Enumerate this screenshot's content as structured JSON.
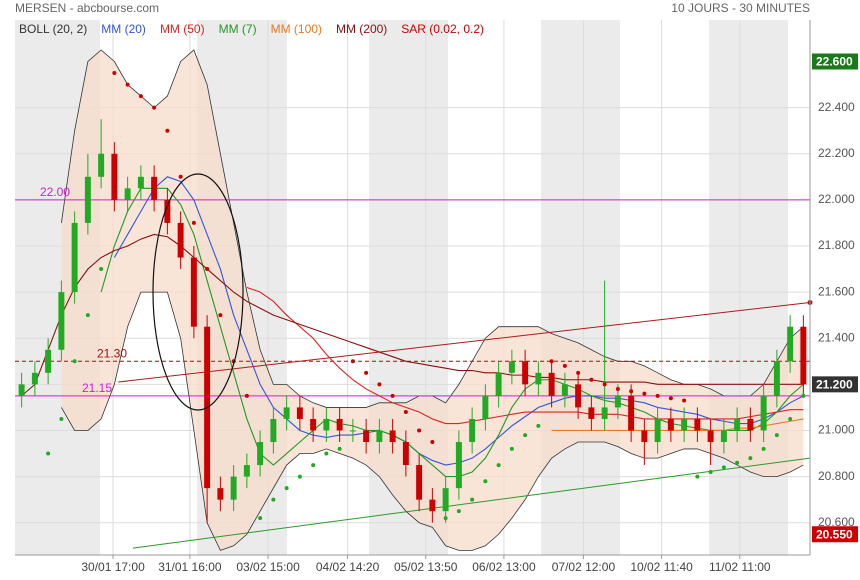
{
  "chart_data": {
    "type": "candlestick",
    "title": "MERSEN - abcbourse.com",
    "subtitle": "10 JOURS - 30 MINUTES",
    "up_color": "#22aa22",
    "down_color": "#cc0000",
    "xlim": [
      -0.5,
      59.5
    ],
    "xticks": [
      {
        "value": 6.9,
        "label": "30/01 17:00"
      },
      {
        "value": 12.7,
        "label": "31/01 16:00"
      },
      {
        "value": 18.6,
        "label": "03/02 15:00"
      },
      {
        "value": 24.6,
        "label": "04/02 14:20"
      },
      {
        "value": 30.5,
        "label": "05/02 13:50"
      },
      {
        "value": 36.4,
        "label": "06/02 13:00"
      },
      {
        "value": 42.4,
        "label": "07/02 12:00"
      },
      {
        "value": 48.3,
        "label": "10/02 11:40"
      },
      {
        "value": 54.2,
        "label": "11/02 11:00"
      }
    ],
    "ylim": [
      20.46,
      22.78
    ],
    "yticks": [
      {
        "value": 20.6,
        "label": "20.600"
      },
      {
        "value": 20.8,
        "label": "20.800"
      },
      {
        "value": 21.0,
        "label": "21.000"
      },
      {
        "value": 21.2,
        "label": "21.200"
      },
      {
        "value": 21.4,
        "label": "21.400"
      },
      {
        "value": 21.6,
        "label": "21.600"
      },
      {
        "value": 21.8,
        "label": "21.800"
      },
      {
        "value": 22.0,
        "label": "22.000"
      },
      {
        "value": 22.2,
        "label": "22.200"
      },
      {
        "value": 22.4,
        "label": "22.400"
      }
    ],
    "grid": true,
    "markers": [
      {
        "value": 22.6,
        "label": "22.600",
        "color": "#1a7a1a"
      },
      {
        "value": 21.2,
        "label": "21.200",
        "color": "#333333"
      },
      {
        "value": 20.55,
        "label": "20.550",
        "color": "#cc0000"
      }
    ],
    "open": [
      21.15,
      21.2,
      21.25,
      21.35,
      21.6,
      21.9,
      22.1,
      22.2,
      22.0,
      22.05,
      22.1,
      22.0,
      21.9,
      21.75,
      21.45,
      20.75,
      20.7,
      20.8,
      20.85,
      20.95,
      21.05,
      21.1,
      21.05,
      21.0,
      21.05,
      21.0,
      21.0,
      20.95,
      21.0,
      20.95,
      20.85,
      20.7,
      20.65,
      20.75,
      20.95,
      21.05,
      21.15,
      21.25,
      21.3,
      21.2,
      21.25,
      21.15,
      21.2,
      21.1,
      21.05,
      21.1,
      21.15,
      21.0,
      20.95,
      21.05,
      21.0,
      21.05,
      21.0,
      20.95,
      21.0,
      21.05,
      21.0,
      21.15,
      21.3,
      21.45
    ],
    "high": [
      21.25,
      21.3,
      21.4,
      21.65,
      21.95,
      22.2,
      22.35,
      22.25,
      22.1,
      22.15,
      22.15,
      22.05,
      21.95,
      21.8,
      21.5,
      20.8,
      20.85,
      20.9,
      21.0,
      21.1,
      21.15,
      21.15,
      21.1,
      21.1,
      21.1,
      21.05,
      21.05,
      21.05,
      21.05,
      21.0,
      20.9,
      20.75,
      20.8,
      21.0,
      21.1,
      21.2,
      21.3,
      21.35,
      21.35,
      21.3,
      21.3,
      21.25,
      21.25,
      21.15,
      21.65,
      21.2,
      21.2,
      21.05,
      21.1,
      21.1,
      21.1,
      21.1,
      21.05,
      21.05,
      21.1,
      21.1,
      21.2,
      21.35,
      21.5,
      21.5
    ],
    "low": [
      21.1,
      21.15,
      21.2,
      21.3,
      21.55,
      21.85,
      22.05,
      21.95,
      21.95,
      22.0,
      21.95,
      21.85,
      21.7,
      21.4,
      20.6,
      20.65,
      20.65,
      20.75,
      20.8,
      20.9,
      21.0,
      21.0,
      20.95,
      20.95,
      20.95,
      20.95,
      20.9,
      20.9,
      20.9,
      20.8,
      20.65,
      20.6,
      20.6,
      20.7,
      20.9,
      21.0,
      21.1,
      21.2,
      21.15,
      21.15,
      21.1,
      21.1,
      21.05,
      21.0,
      21.0,
      21.05,
      20.95,
      20.85,
      20.9,
      20.95,
      20.95,
      20.95,
      20.85,
      20.9,
      20.95,
      20.95,
      20.95,
      21.1,
      21.25,
      21.15
    ],
    "close": [
      21.2,
      21.25,
      21.35,
      21.6,
      21.9,
      22.1,
      22.2,
      22.0,
      22.05,
      22.1,
      22.0,
      21.9,
      21.75,
      21.45,
      20.75,
      20.7,
      20.8,
      20.85,
      20.95,
      21.05,
      21.1,
      21.05,
      21.0,
      21.05,
      21.0,
      21.0,
      20.95,
      21.0,
      20.95,
      20.85,
      20.7,
      20.65,
      20.75,
      20.95,
      21.05,
      21.15,
      21.25,
      21.3,
      21.2,
      21.25,
      21.15,
      21.2,
      21.1,
      21.05,
      21.1,
      21.15,
      21.0,
      20.95,
      21.05,
      21.0,
      21.05,
      21.0,
      20.95,
      21.0,
      21.05,
      21.0,
      21.15,
      21.3,
      21.45,
      21.2
    ],
    "bollinger": {
      "name": "BOLL (20, 2)",
      "color": "#333333",
      "fill": "#f6dccb",
      "upper": [
        null,
        null,
        null,
        21.9,
        22.3,
        22.6,
        22.65,
        22.6,
        22.5,
        22.45,
        22.4,
        22.45,
        22.6,
        22.65,
        22.5,
        22.2,
        21.9,
        21.6,
        21.35,
        21.2,
        21.2,
        21.15,
        21.12,
        21.1,
        21.1,
        21.1,
        21.1,
        21.12,
        21.12,
        21.12,
        21.15,
        21.15,
        21.12,
        21.2,
        21.3,
        21.4,
        21.45,
        21.45,
        21.45,
        21.45,
        21.42,
        21.4,
        21.38,
        21.35,
        21.32,
        21.3,
        21.3,
        21.28,
        21.25,
        21.22,
        21.2,
        21.2,
        21.18,
        21.15,
        21.15,
        21.15,
        21.2,
        21.3,
        21.4,
        21.45
      ],
      "lower": [
        null,
        null,
        null,
        21.1,
        21.0,
        21.0,
        21.05,
        21.2,
        21.45,
        21.6,
        21.6,
        21.6,
        21.4,
        21.0,
        20.6,
        20.48,
        20.5,
        20.55,
        20.65,
        20.75,
        20.85,
        20.9,
        20.9,
        20.92,
        20.9,
        20.88,
        20.85,
        20.8,
        20.72,
        20.65,
        20.6,
        20.58,
        20.5,
        20.48,
        20.48,
        20.5,
        20.55,
        20.62,
        20.7,
        20.8,
        20.88,
        20.92,
        20.95,
        20.95,
        20.95,
        20.93,
        20.9,
        20.88,
        20.88,
        20.9,
        20.92,
        20.92,
        20.9,
        20.88,
        20.85,
        20.82,
        20.8,
        20.8,
        20.82,
        20.85
      ]
    },
    "series": [
      {
        "name": "MM (20)",
        "color": "#3355dd",
        "values": [
          null,
          null,
          null,
          null,
          null,
          null,
          null,
          21.75,
          21.85,
          21.95,
          22.05,
          22.1,
          22.08,
          22.0,
          21.85,
          21.7,
          21.5,
          21.35,
          21.2,
          21.1,
          21.05,
          21.0,
          20.98,
          20.97,
          20.98,
          20.98,
          20.99,
          21.0,
          20.98,
          20.95,
          20.9,
          20.87,
          20.85,
          20.86,
          20.88,
          20.92,
          20.97,
          21.02,
          21.06,
          21.1,
          21.12,
          21.14,
          21.15,
          21.15,
          21.14,
          21.14,
          21.13,
          21.12,
          21.1,
          21.09,
          21.08,
          21.07,
          21.05,
          21.04,
          21.03,
          21.03,
          21.05,
          21.08,
          21.12,
          21.15
        ]
      },
      {
        "name": "MM (50)",
        "color": "#dd2222",
        "values": [
          null,
          null,
          null,
          null,
          null,
          null,
          null,
          null,
          null,
          null,
          null,
          null,
          null,
          null,
          null,
          null,
          null,
          21.62,
          21.6,
          21.56,
          21.5,
          21.45,
          21.4,
          21.33,
          21.27,
          21.22,
          21.18,
          21.15,
          21.12,
          21.1,
          21.08,
          21.05,
          21.03,
          21.03,
          21.04,
          21.05,
          21.06,
          21.07,
          21.08,
          21.08,
          21.08,
          21.08,
          21.08,
          21.07,
          21.07,
          21.07,
          21.06,
          21.05,
          21.05,
          21.05,
          21.05,
          21.05,
          21.05,
          21.05,
          21.05,
          21.06,
          21.07,
          21.08,
          21.09,
          21.09
        ]
      },
      {
        "name": "MM (7)",
        "color": "#229922",
        "values": [
          null,
          null,
          null,
          null,
          null,
          null,
          21.6,
          21.8,
          21.95,
          22.05,
          22.05,
          22.05,
          21.98,
          21.85,
          21.65,
          21.45,
          21.25,
          21.05,
          20.9,
          20.85,
          20.9,
          20.95,
          21.0,
          21.05,
          21.03,
          21.02,
          21.0,
          21.0,
          20.98,
          20.95,
          20.9,
          20.85,
          20.8,
          20.8,
          20.82,
          20.88,
          20.98,
          21.1,
          21.18,
          21.22,
          21.22,
          21.2,
          21.18,
          21.15,
          21.13,
          21.12,
          21.1,
          21.08,
          21.05,
          21.03,
          21.02,
          21.01,
          21.0,
          21.0,
          21.0,
          21.0,
          21.03,
          21.08,
          21.15,
          21.2
        ]
      },
      {
        "name": "MM (100)",
        "color": "#ee7722",
        "values": [
          null,
          null,
          null,
          null,
          null,
          null,
          null,
          null,
          null,
          null,
          null,
          null,
          null,
          null,
          null,
          null,
          null,
          null,
          null,
          null,
          null,
          null,
          null,
          null,
          null,
          null,
          null,
          null,
          null,
          null,
          null,
          null,
          null,
          null,
          null,
          null,
          null,
          null,
          null,
          null,
          21.0,
          21.0,
          21.0,
          21.0,
          21.0,
          21.0,
          21.0,
          21.0,
          21.0,
          21.0,
          21.0,
          21.0,
          21.0,
          21.0,
          21.01,
          21.01,
          21.02,
          21.03,
          21.04,
          21.05
        ]
      },
      {
        "name": "MM (200)",
        "color": "#8b1010",
        "values": [
          21.15,
          21.2,
          21.35,
          21.5,
          21.62,
          21.7,
          21.75,
          21.78,
          21.8,
          21.83,
          21.85,
          21.84,
          21.8,
          21.75,
          21.7,
          21.65,
          21.6,
          21.56,
          21.53,
          21.5,
          21.48,
          21.46,
          21.44,
          21.42,
          21.4,
          21.38,
          21.36,
          21.34,
          21.32,
          21.3,
          21.29,
          21.28,
          21.27,
          21.26,
          21.26,
          21.25,
          21.25,
          21.24,
          21.24,
          21.23,
          21.23,
          21.22,
          21.22,
          21.22,
          21.21,
          21.21,
          21.21,
          21.21,
          21.2,
          21.2,
          21.2,
          21.2,
          21.2,
          21.2,
          21.2,
          21.2,
          21.2,
          21.2,
          21.2,
          21.2
        ]
      }
    ],
    "sar": {
      "name": "SAR (0.02, 0.2)",
      "color": "#cc0000",
      "below_color": "#22aa22",
      "values": [
        null,
        null,
        20.9,
        21.05,
        21.3,
        21.5,
        21.7,
        22.55,
        22.5,
        22.45,
        22.4,
        22.3,
        22.1,
        21.9,
        21.7,
        21.5,
        21.3,
        21.15,
        20.62,
        20.7,
        20.75,
        20.8,
        20.85,
        20.9,
        20.92,
        21.3,
        21.25,
        21.2,
        21.15,
        21.08,
        21.0,
        20.95,
        20.62,
        20.65,
        20.7,
        20.78,
        20.85,
        20.92,
        20.98,
        21.02,
        21.3,
        21.28,
        21.25,
        21.22,
        21.2,
        21.18,
        21.17,
        21.16,
        21.15,
        21.14,
        21.13,
        20.8,
        20.82,
        20.84,
        20.86,
        20.88,
        20.92,
        20.98,
        21.05,
        21.15
      ]
    },
    "levels": [
      {
        "value": 22.0,
        "label": "22.00",
        "color": "#d020d0",
        "dash": false
      },
      {
        "value": 21.3,
        "label": "21.30",
        "color": "#a01010",
        "dash": true
      },
      {
        "value": 21.15,
        "label": "21.15",
        "color": "#d020d0",
        "dash": false
      }
    ],
    "trendlines": [
      {
        "color": "#b01818",
        "x": [
          7.3,
          59.5
        ],
        "y": [
          21.21,
          21.555
        ]
      },
      {
        "color": "#2a9a2a",
        "x": [
          8.4,
          59.5
        ],
        "y": [
          20.49,
          20.88
        ]
      }
    ]
  }
}
